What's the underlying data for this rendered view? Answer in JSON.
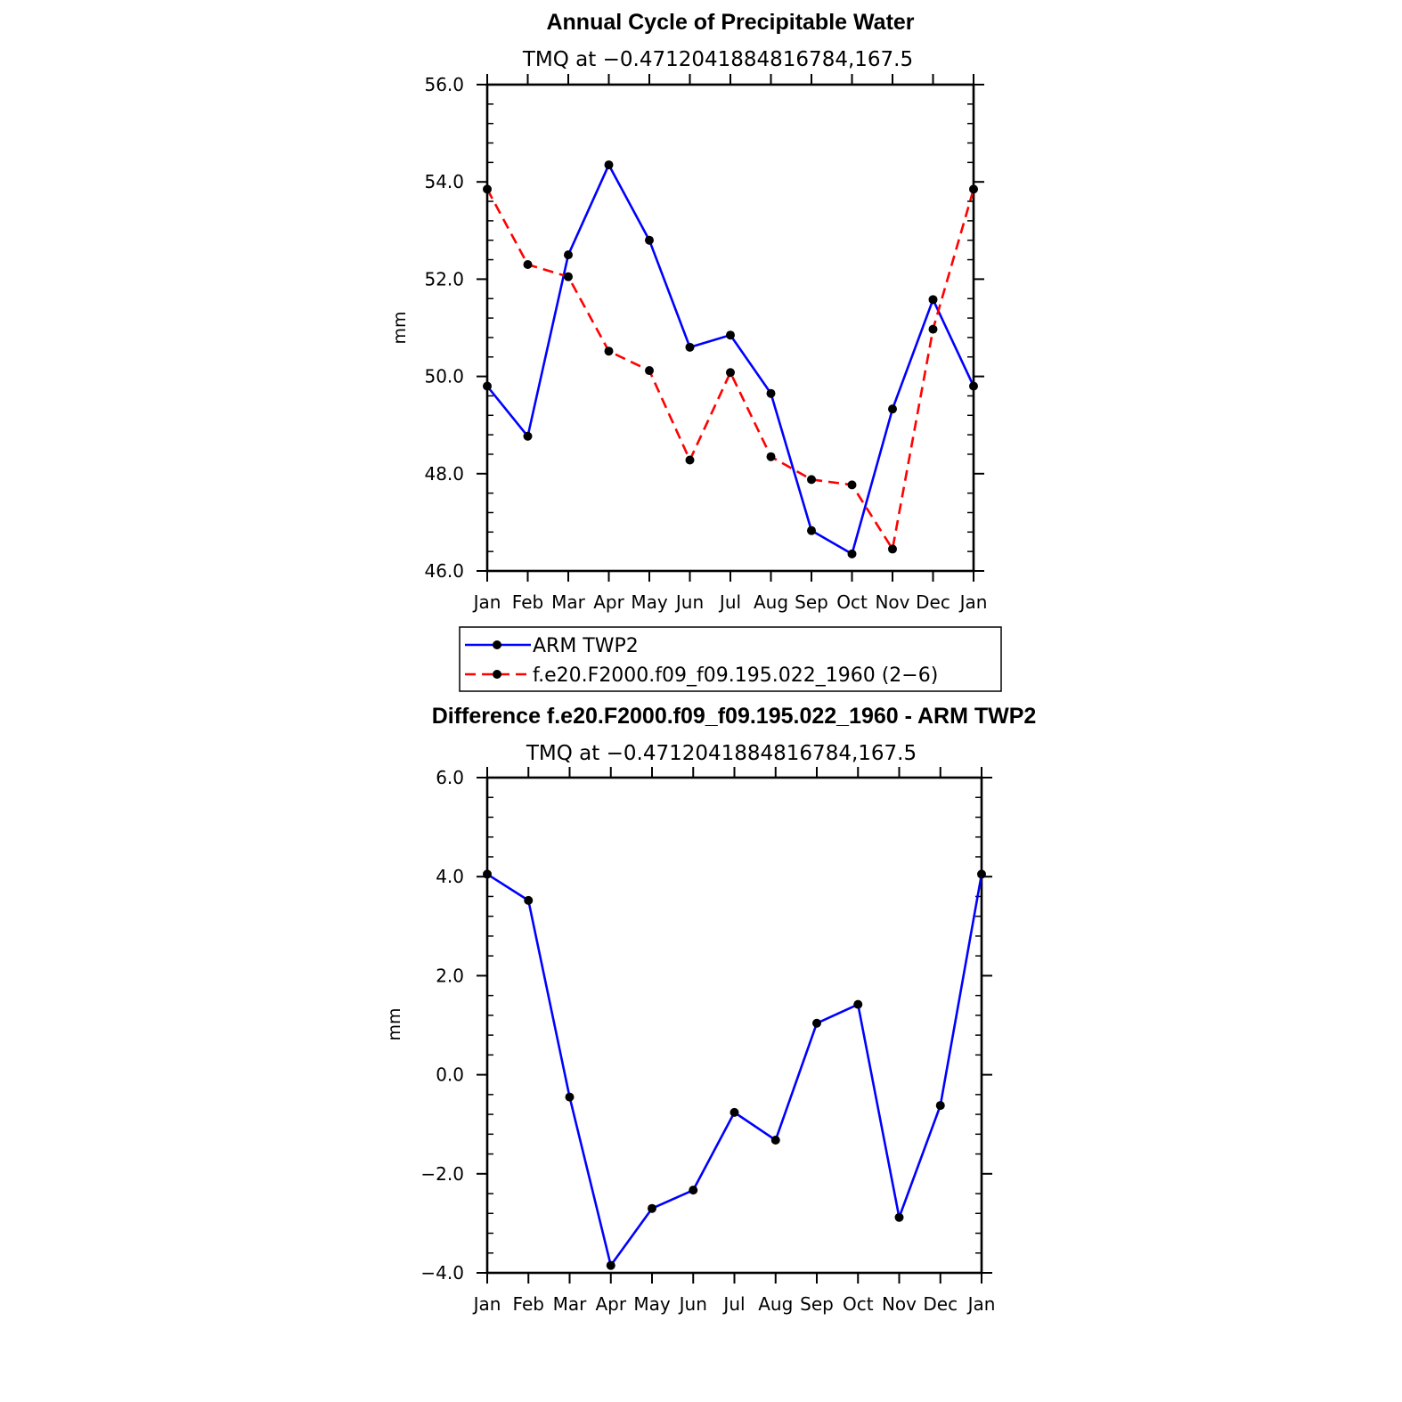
{
  "chart_data": [
    {
      "type": "line",
      "title": "Annual Cycle of Precipitable Water",
      "subtitle": "TMQ at −0.4712041884816784,167.5",
      "xlabel": "",
      "ylabel": "mm",
      "categories": [
        "Jan",
        "Feb",
        "Mar",
        "Apr",
        "May",
        "Jun",
        "Jul",
        "Aug",
        "Sep",
        "Oct",
        "Nov",
        "Dec",
        "Jan"
      ],
      "ylim": [
        46.0,
        56.0
      ],
      "yticks": [
        "46.0",
        "48.0",
        "50.0",
        "52.0",
        "54.0",
        "56.0"
      ],
      "series": [
        {
          "name": "ARM TWP2",
          "color": "#0000ff",
          "dash": "solid",
          "values": [
            49.8,
            48.77,
            52.5,
            54.35,
            52.8,
            50.6,
            50.85,
            49.65,
            46.83,
            46.35,
            49.33,
            51.58,
            49.8
          ]
        },
        {
          "name": "f.e20.F2000.f09_f09.195.022_1960 (2−6)",
          "color": "#ff0000",
          "dash": "dashed",
          "values": [
            53.85,
            52.3,
            52.05,
            50.52,
            50.12,
            48.28,
            50.08,
            48.35,
            47.88,
            47.77,
            46.45,
            50.97,
            53.85
          ]
        }
      ],
      "legend": {
        "position": "below",
        "labels": [
          "ARM TWP2",
          "f.e20.F2000.f09_f09.195.022_1960 (2−6)"
        ]
      }
    },
    {
      "type": "line",
      "title": "Difference f.e20.F2000.f09_f09.195.022_1960 - ARM TWP2",
      "subtitle": "TMQ at −0.4712041884816784,167.5",
      "xlabel": "",
      "ylabel": "mm",
      "categories": [
        "Jan",
        "Feb",
        "Mar",
        "Apr",
        "May",
        "Jun",
        "Jul",
        "Aug",
        "Sep",
        "Oct",
        "Nov",
        "Dec",
        "Jan"
      ],
      "ylim": [
        -4.0,
        6.0
      ],
      "yticks": [
        "−4.0",
        "−2.0",
        "0.0",
        "2.0",
        "4.0",
        "6.0"
      ],
      "series": [
        {
          "name": "Difference",
          "color": "#0000ff",
          "dash": "solid",
          "values": [
            4.05,
            3.52,
            -0.45,
            -3.85,
            -2.7,
            -2.33,
            -0.76,
            -1.32,
            1.04,
            1.42,
            -2.88,
            -0.62,
            4.05
          ]
        }
      ]
    }
  ]
}
